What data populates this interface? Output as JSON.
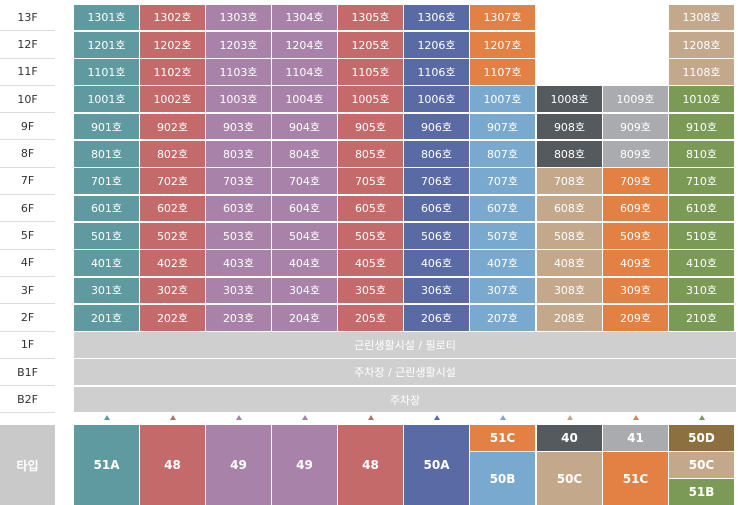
{
  "colors": {
    "c1": "#5e9aa0",
    "c2": "#c46a6a",
    "c3": "#a882a8",
    "c4": "#a882a8",
    "c5": "#c46a6a",
    "c6": "#5a6aa5",
    "c7": "#7aa9cf",
    "c8": "#c4a88c",
    "c9": "#e38044",
    "c10": "#7a9a55",
    "orange": "#e38044",
    "darkgray": "#545a5e",
    "lightgray": "#a9abae",
    "tan": "#c4a88c",
    "band": "#cfcfcf",
    "typelabel": "#c9c9c9"
  },
  "floors": [
    "13F",
    "12F",
    "11F",
    "10F",
    "9F",
    "8F",
    "7F",
    "6F",
    "5F",
    "4F",
    "3F",
    "2F",
    "1F",
    "B1F",
    "B2F"
  ],
  "units": {
    "13F": [
      "1301호",
      "1302호",
      "1303호",
      "1304호",
      "1305호",
      "1306호",
      "1307호",
      "",
      "",
      "1308호"
    ],
    "12F": [
      "1201호",
      "1202호",
      "1203호",
      "1204호",
      "1205호",
      "1206호",
      "1207호",
      "",
      "",
      "1208호"
    ],
    "11F": [
      "1101호",
      "1102호",
      "1103호",
      "1104호",
      "1105호",
      "1106호",
      "1107호",
      "",
      "",
      "1108호"
    ],
    "10F": [
      "1001호",
      "1002호",
      "1003호",
      "1004호",
      "1005호",
      "1006호",
      "1007호",
      "1008호",
      "1009호",
      "1010호"
    ],
    "9F": [
      "901호",
      "902호",
      "903호",
      "904호",
      "905호",
      "906호",
      "907호",
      "908호",
      "909호",
      "910호"
    ],
    "8F": [
      "801호",
      "802호",
      "803호",
      "804호",
      "805호",
      "806호",
      "807호",
      "808호",
      "809호",
      "810호"
    ],
    "7F": [
      "701호",
      "702호",
      "703호",
      "704호",
      "705호",
      "706호",
      "707호",
      "708호",
      "709호",
      "710호"
    ],
    "6F": [
      "601호",
      "602호",
      "603호",
      "604호",
      "605호",
      "606호",
      "607호",
      "608호",
      "609호",
      "610호"
    ],
    "5F": [
      "501호",
      "502호",
      "503호",
      "504호",
      "505호",
      "506호",
      "507호",
      "508호",
      "509호",
      "510호"
    ],
    "4F": [
      "401호",
      "402호",
      "403호",
      "404호",
      "405호",
      "406호",
      "407호",
      "408호",
      "409호",
      "410호"
    ],
    "3F": [
      "301호",
      "302호",
      "303호",
      "304호",
      "305호",
      "306호",
      "307호",
      "308호",
      "309호",
      "310호"
    ],
    "2F": [
      "201호",
      "202호",
      "203호",
      "204호",
      "205호",
      "206호",
      "207호",
      "208호",
      "209호",
      "210호"
    ]
  },
  "bands": {
    "1F": "근린생활시설 / 필로티",
    "B1F": "주차장 / 근린생활시설",
    "B2F": "주차장"
  },
  "type_header": "타입",
  "types": {
    "col1": "51A",
    "col2": "48",
    "col3": "49",
    "col4": "49",
    "col5": "48",
    "col6": "50A",
    "col7_top": "51C",
    "col7_bottom": "50B",
    "col8_top": "40",
    "col8_bottom": "50C",
    "col9_top": "41",
    "col9_bottom": "51C",
    "col10_top": "50D",
    "col10_mid": "50C",
    "col10_bottom": "51B"
  }
}
